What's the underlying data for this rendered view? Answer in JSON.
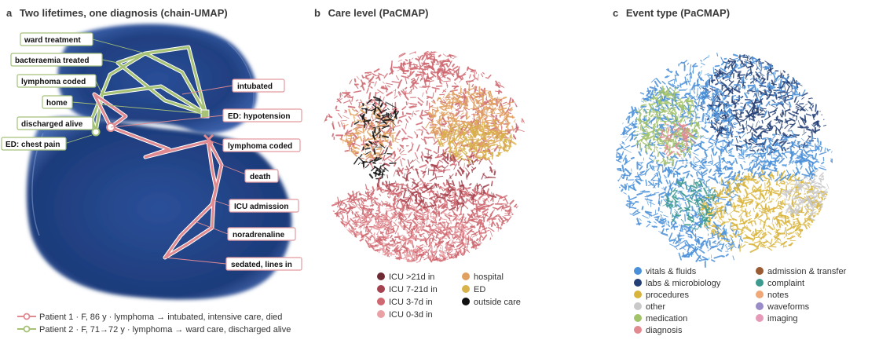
{
  "panels": {
    "a": {
      "letter": "a",
      "title": "Two lifetimes, one diagnosis (chain-UMAP)"
    },
    "b": {
      "letter": "b",
      "title": "Care level (PaCMAP)"
    },
    "c": {
      "letter": "c",
      "title": "Event type (PaCMAP)"
    }
  },
  "colors": {
    "patient1": "#e08a92",
    "patient1_box": "#e49aa0",
    "patient2": "#a6c277",
    "patient2_box": "#a4c07a",
    "umap_blob": "#1f3f80"
  },
  "chart_data": [
    {
      "type": "scatter",
      "panel": "a",
      "title": "Two lifetimes, one diagnosis (chain-UMAP)",
      "series": [
        {
          "name": "Patient 1 · F, 86 y · lymphoma → intubated, intensive care, died",
          "events": [
            "ED: hypotension",
            "lymphoma coded",
            "intubated",
            "noradrenaline",
            "ICU admission",
            "sedated, lines in",
            "death"
          ]
        },
        {
          "name": "Patient 2 · F, 71→72 y · lymphoma → ward care, discharged alive",
          "events": [
            "ED: chest pain",
            "lymphoma coded",
            "bacteraemia treated",
            "ward treatment",
            "home",
            "discharged alive"
          ]
        }
      ]
    },
    {
      "type": "scatter",
      "panel": "b",
      "title": "Care level (PaCMAP)",
      "legend": [
        {
          "label": "ICU >21d in",
          "color": "#6e2a33"
        },
        {
          "label": "ICU 7-21d in",
          "color": "#a4434f"
        },
        {
          "label": "ICU 3-7d in",
          "color": "#cf6870"
        },
        {
          "label": "ICU 0-3d in",
          "color": "#eaa1a6"
        },
        {
          "label": "hospital",
          "color": "#e0a060"
        },
        {
          "label": "ED",
          "color": "#d8b24a"
        },
        {
          "label": "outside care",
          "color": "#111111"
        }
      ]
    },
    {
      "type": "scatter",
      "panel": "c",
      "title": "Event type (PaCMAP)",
      "legend": [
        {
          "label": "vitals & fluids",
          "color": "#4a90d9"
        },
        {
          "label": "labs & microbiology",
          "color": "#233f75"
        },
        {
          "label": "procedures",
          "color": "#d9b43b"
        },
        {
          "label": "other",
          "color": "#c9c9c9"
        },
        {
          "label": "medication",
          "color": "#a3c36b"
        },
        {
          "label": "diagnosis",
          "color": "#e28a90"
        },
        {
          "label": "admission & transfer",
          "color": "#9a5a32"
        },
        {
          "label": "complaint",
          "color": "#3d9a90"
        },
        {
          "label": "notes",
          "color": "#f0a878"
        },
        {
          "label": "waveforms",
          "color": "#9a8cc8"
        },
        {
          "label": "imaging",
          "color": "#e79ab8"
        }
      ]
    }
  ],
  "annotations": {
    "p2_labels": [
      "ward treatment",
      "bacteraemia treated",
      "lymphoma coded",
      "home",
      "discharged alive",
      "ED: chest pain"
    ],
    "p1_labels": [
      "intubated",
      "ED: hypotension",
      "lymphoma coded",
      "death",
      "ICU admission",
      "noradrenaline",
      "sedated, lines in"
    ]
  }
}
